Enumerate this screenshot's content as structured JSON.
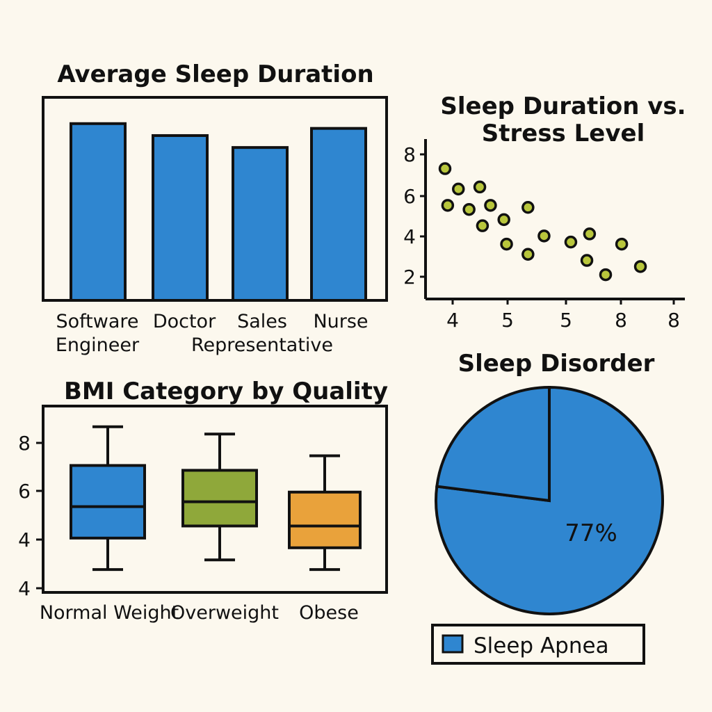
{
  "chart_data": [
    {
      "type": "bar",
      "title": "Average Sleep Duration",
      "categories": [
        [
          "Software",
          "Engineer"
        ],
        [
          "Doctor"
        ],
        [
          "Sales",
          "Representative"
        ],
        [
          "Nurse"
        ]
      ],
      "values": [
        7.4,
        6.9,
        6.4,
        7.2
      ],
      "ylim": [
        0,
        8.5
      ],
      "color": "#2f86d0",
      "grid": false
    },
    {
      "type": "scatter",
      "title": [
        "Sleep Duration vs.",
        "Stress Level"
      ],
      "x_ticks": [
        "4",
        "5",
        "5",
        "8",
        "8"
      ],
      "y_ticks": [
        "8",
        "6",
        "4",
        "2"
      ],
      "points": [
        [
          4.0,
          7.3
        ],
        [
          4.1,
          5.5
        ],
        [
          4.5,
          6.3
        ],
        [
          4.9,
          5.3
        ],
        [
          5.3,
          6.4
        ],
        [
          5.4,
          4.5
        ],
        [
          5.7,
          5.5
        ],
        [
          6.2,
          4.8
        ],
        [
          6.3,
          3.6
        ],
        [
          7.1,
          5.4
        ],
        [
          7.1,
          3.1
        ],
        [
          7.7,
          4.0
        ],
        [
          8.7,
          3.7
        ],
        [
          9.4,
          4.1
        ],
        [
          9.3,
          2.8
        ],
        [
          10.0,
          2.1
        ],
        [
          10.6,
          3.6
        ],
        [
          11.3,
          2.5
        ]
      ],
      "xlim": [
        3.0,
        12.0
      ],
      "ylim": [
        1.0,
        8.7
      ],
      "point_color": "#b8c63c",
      "grid": false
    },
    {
      "type": "box",
      "title": "BMI Category by Quality",
      "categories": [
        "Normal Weight",
        "Overweight",
        "Obese"
      ],
      "y_ticks": [
        "8",
        "6",
        "4",
        "4"
      ],
      "boxes": [
        {
          "min": 4.4,
          "q1": 5.7,
          "median": 7.0,
          "q3": 8.7,
          "max": 10.3
        },
        {
          "min": 4.8,
          "q1": 6.2,
          "median": 7.2,
          "q3": 8.5,
          "max": 10.0
        },
        {
          "min": 4.4,
          "q1": 5.3,
          "median": 6.2,
          "q3": 7.6,
          "max": 9.1
        }
      ],
      "ylim": [
        3.8,
        11.5
      ],
      "colors": [
        "#2f86d0",
        "#8fa83a",
        "#e9a23b"
      ],
      "grid": false
    },
    {
      "type": "pie",
      "title": "Sleep Disorder",
      "slices": [
        {
          "label": "Sleep Apnea",
          "value": 77,
          "color": "#2f86d0"
        },
        {
          "label": "",
          "value": 23,
          "color": "#2f86d0"
        }
      ],
      "slice_label": "77%",
      "legend": [
        {
          "label": "Sleep Apnea",
          "color": "#2f86d0"
        }
      ],
      "legend_position": "bottom"
    }
  ]
}
